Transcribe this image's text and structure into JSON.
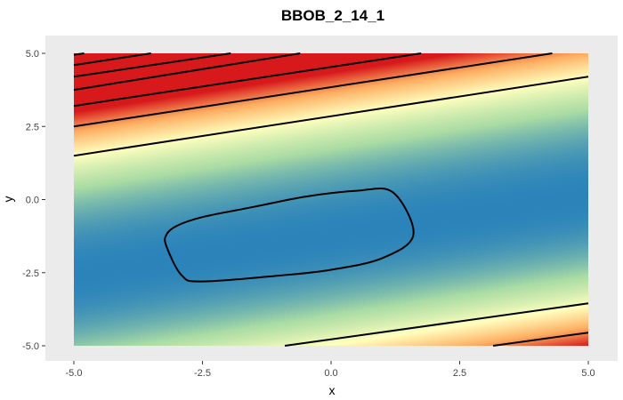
{
  "chart_data": {
    "type": "heatmap",
    "title": "BBOB_2_14_1",
    "xlabel": "x",
    "ylabel": "y",
    "xlim": [
      -5,
      5
    ],
    "ylim": [
      -5,
      5
    ],
    "x_ticks": [
      -5.0,
      -2.5,
      0.0,
      2.5,
      5.0
    ],
    "y_ticks": [
      -5.0,
      -2.5,
      0.0,
      2.5,
      5.0
    ],
    "x_tick_labels": [
      "-5.0",
      "-2.5",
      "0.0",
      "2.5",
      "5.0"
    ],
    "y_tick_labels": [
      "-5.0",
      "-2.5",
      "0.0",
      "2.5",
      "5.0"
    ],
    "colorscale": [
      "#2b83ba",
      "#abdda4",
      "#ffffbf",
      "#fdae61",
      "#d7191c"
    ],
    "panel_background": "#ebebeb",
    "contour_color": "#000000",
    "contours": [
      {
        "name": "contour-closed-center",
        "closed": true,
        "points": [
          [
            -3.2,
            -1.2
          ],
          [
            -3.0,
            -0.9
          ],
          [
            -2.5,
            -0.6
          ],
          [
            -1.5,
            -0.25
          ],
          [
            -0.5,
            0.1
          ],
          [
            0.5,
            0.3
          ],
          [
            1.2,
            0.25
          ],
          [
            1.6,
            -1.2
          ],
          [
            1.0,
            -2.0
          ],
          [
            0.0,
            -2.4
          ],
          [
            -1.0,
            -2.6
          ],
          [
            -2.5,
            -2.8
          ],
          [
            -2.9,
            -2.6
          ],
          [
            -3.2,
            -1.6
          ]
        ]
      },
      {
        "name": "contour-top-1",
        "closed": false,
        "points": [
          [
            -5.0,
            1.5
          ],
          [
            5.0,
            4.2
          ]
        ]
      },
      {
        "name": "contour-top-2",
        "closed": false,
        "points": [
          [
            -5.0,
            2.5
          ],
          [
            4.3,
            5.0
          ]
        ]
      },
      {
        "name": "contour-top-3",
        "closed": false,
        "points": [
          [
            -5.0,
            3.2
          ],
          [
            1.75,
            5.0
          ]
        ]
      },
      {
        "name": "contour-top-4",
        "closed": false,
        "points": [
          [
            -5.0,
            3.75
          ],
          [
            -0.6,
            5.0
          ]
        ]
      },
      {
        "name": "contour-top-5",
        "closed": false,
        "points": [
          [
            -5.0,
            4.2
          ],
          [
            -1.95,
            5.0
          ]
        ]
      },
      {
        "name": "contour-top-6",
        "closed": false,
        "points": [
          [
            -5.0,
            4.6
          ],
          [
            -3.5,
            5.0
          ]
        ]
      },
      {
        "name": "contour-top-7",
        "closed": false,
        "points": [
          [
            -5.0,
            4.95
          ],
          [
            -4.8,
            5.0
          ]
        ]
      },
      {
        "name": "contour-bottom-1",
        "closed": false,
        "points": [
          [
            -0.9,
            -5.0
          ],
          [
            5.0,
            -3.55
          ]
        ]
      },
      {
        "name": "contour-bottom-2",
        "closed": false,
        "points": [
          [
            3.15,
            -5.0
          ],
          [
            5.0,
            -4.55
          ]
        ]
      }
    ]
  }
}
